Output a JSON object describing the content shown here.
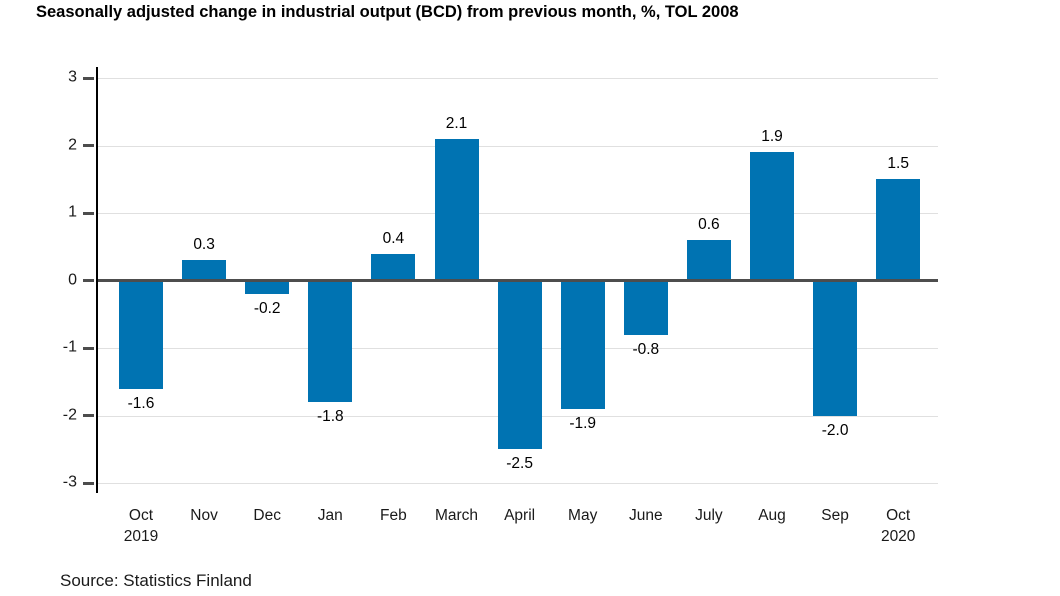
{
  "chart_data": {
    "type": "bar",
    "title": "Seasonally adjusted change in industrial output (BCD) from previous month, %, TOL 2008",
    "source": "Source: Statistics Finland",
    "categories": [
      {
        "label": "Oct",
        "sub": "2019"
      },
      {
        "label": "Nov",
        "sub": ""
      },
      {
        "label": "Dec",
        "sub": ""
      },
      {
        "label": "Jan",
        "sub": ""
      },
      {
        "label": "Feb",
        "sub": ""
      },
      {
        "label": "March",
        "sub": ""
      },
      {
        "label": "April",
        "sub": ""
      },
      {
        "label": "May",
        "sub": ""
      },
      {
        "label": "June",
        "sub": ""
      },
      {
        "label": "July",
        "sub": ""
      },
      {
        "label": "Aug",
        "sub": ""
      },
      {
        "label": "Sep",
        "sub": ""
      },
      {
        "label": "Oct",
        "sub": "2020"
      }
    ],
    "values": [
      -1.6,
      0.3,
      -0.2,
      -1.8,
      0.4,
      2.1,
      -2.5,
      -1.9,
      -0.8,
      0.6,
      1.9,
      -2.0,
      1.5
    ],
    "xlabel": "",
    "ylabel": "",
    "ylim": [
      -3,
      3
    ],
    "yticks": [
      3,
      2,
      1,
      0,
      -1,
      -2,
      -3
    ],
    "grid": true,
    "legend_position": "none",
    "colors": {
      "bar": "#0073b2",
      "gridline": "#e0e0e0",
      "zero_line": "#4d4d4d",
      "axis_line": "#000000",
      "tick_mark": "#4d4d4d",
      "text": "#1a1a1a"
    }
  }
}
